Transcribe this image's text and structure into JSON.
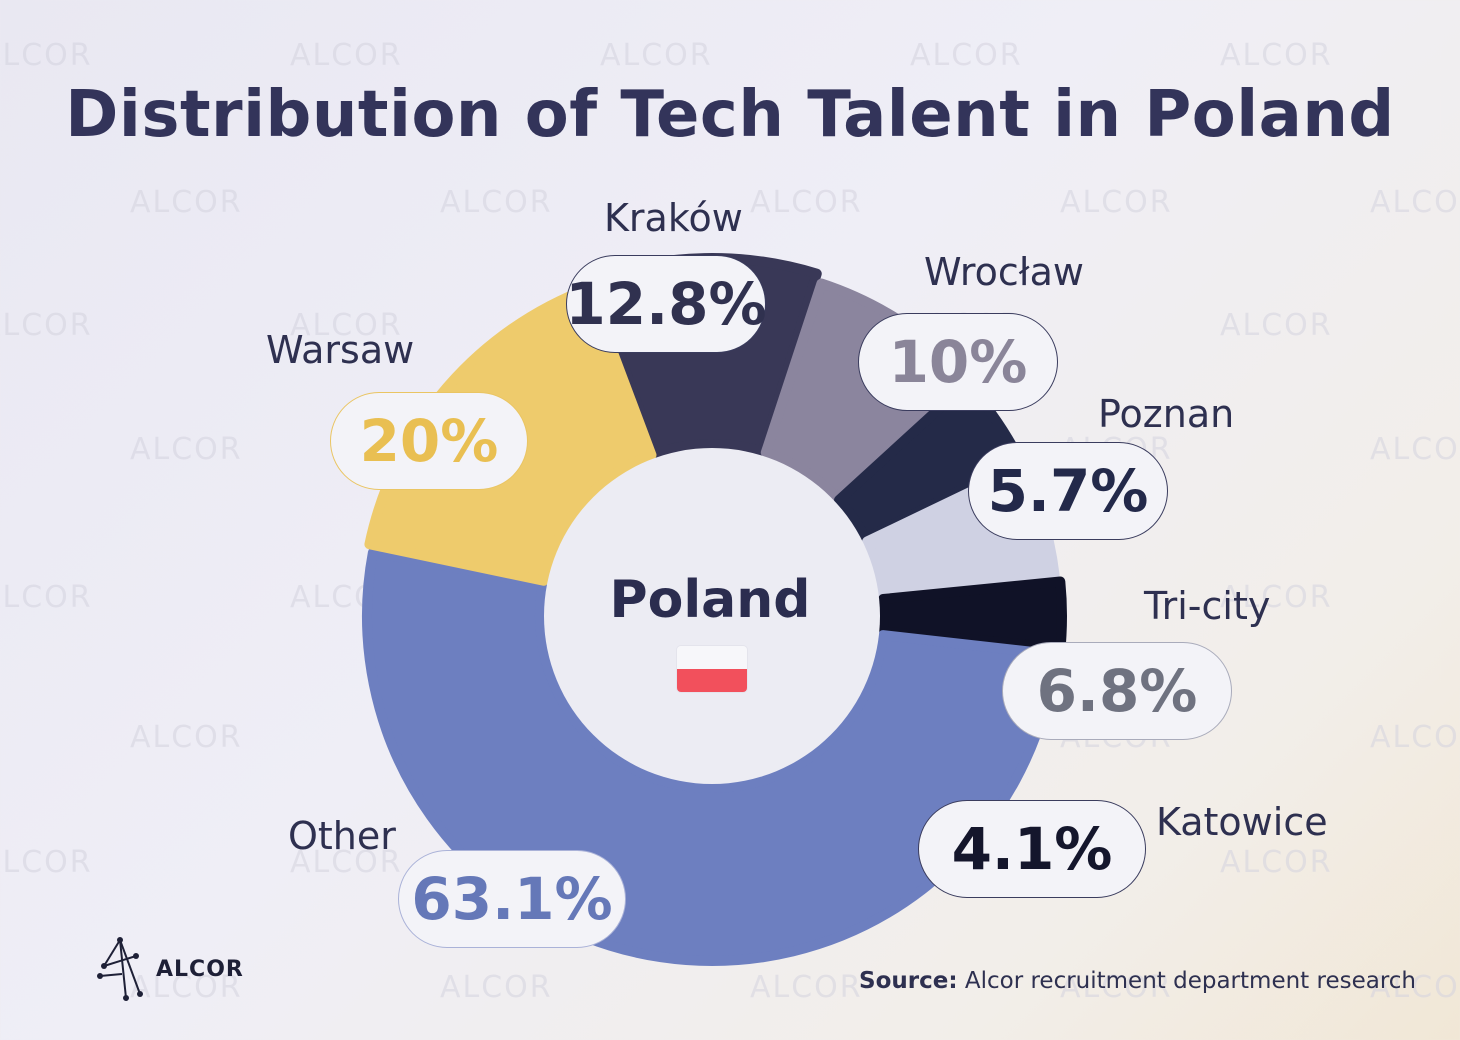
{
  "title": "Distribution of Tech Talent in Poland",
  "center": {
    "label": "Poland",
    "flag_colors": [
      "#f7f7fa",
      "#f2505c"
    ]
  },
  "chart_data": {
    "type": "pie",
    "title": "Distribution of Tech Talent in Poland",
    "unit": "%",
    "slices": [
      {
        "label": "Warsaw",
        "value": 20,
        "value_label": "20%",
        "color": "#eecb6c",
        "text_color": "#e9bf52",
        "pill_border": "#eac563"
      },
      {
        "label": "Kraków",
        "value": 12.8,
        "value_label": "12.8%",
        "color": "#393857",
        "text_color": "#30314f",
        "pill_border": "#3a3c5e"
      },
      {
        "label": "Wrocław",
        "value": 10,
        "value_label": "10%",
        "color": "#8b859e",
        "text_color": "#8a8599",
        "pill_border": "#3a3c5e"
      },
      {
        "label": "Poznan",
        "value": 5.7,
        "value_label": "5.7%",
        "color": "#242a48",
        "text_color": "#23294a",
        "pill_border": "#3a3c5e"
      },
      {
        "label": "Tri-city",
        "value": 6.8,
        "value_label": "6.8%",
        "color": "#cfd1e3",
        "text_color": "#6f7280",
        "pill_border": "#a9abbb"
      },
      {
        "label": "Katowice",
        "value": 4.1,
        "value_label": "4.1%",
        "color": "#101227",
        "text_color": "#14162c",
        "pill_border": "#3a3c5e"
      },
      {
        "label": "Other",
        "value": 63.1,
        "value_label": "63.1%",
        "color": "#6d7fc0",
        "text_color": "#6578b8",
        "pill_border": "#aab2d8"
      }
    ]
  },
  "footer": {
    "logo_text": "ALCOR",
    "source_label": "Source:",
    "source_text": "Alcor recruitment department research"
  },
  "watermark_text": "ALCOR"
}
